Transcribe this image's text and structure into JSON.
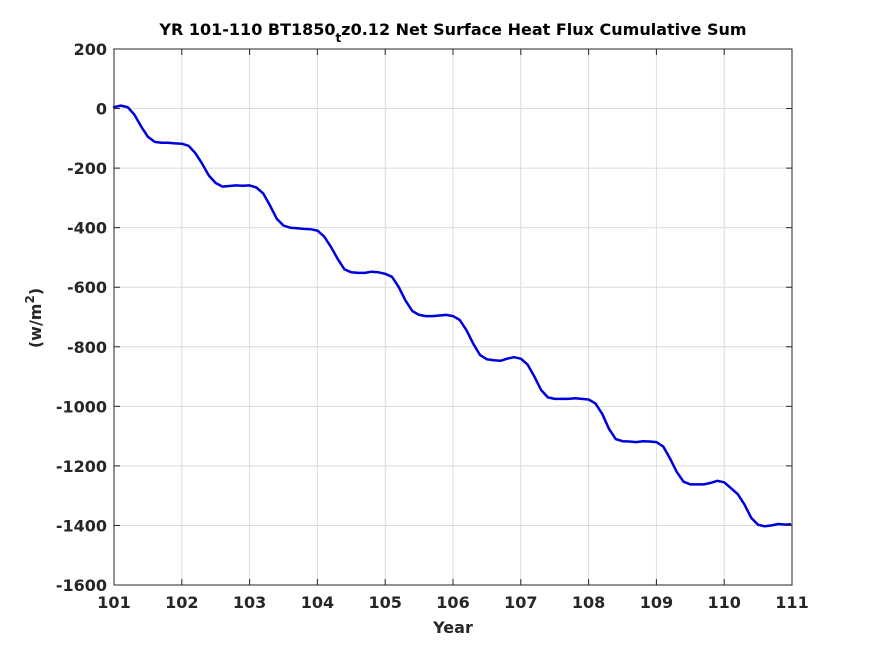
{
  "chart_data": {
    "type": "line",
    "title": {
      "prefix": "YR 101-110 BT1850",
      "subscript": "t",
      "suffix": "z0.12 Net Surface Heat Flux  Cumulative Sum"
    },
    "xlabel": "Year",
    "ylabel": {
      "base": "(w/m",
      "superscript": "2",
      "close": ")"
    },
    "xlim": [
      101,
      111
    ],
    "ylim": [
      -1600,
      200
    ],
    "xticks": [
      101,
      102,
      103,
      104,
      105,
      106,
      107,
      108,
      109,
      110,
      111
    ],
    "xtick_labels": [
      "101",
      "102",
      "103",
      "104",
      "105",
      "106",
      "107",
      "108",
      "109",
      "110",
      "111"
    ],
    "yticks": [
      -1600,
      -1400,
      -1200,
      -1000,
      -800,
      -600,
      -400,
      -200,
      0,
      200
    ],
    "ytick_labels": [
      "-1600",
      "-1400",
      "-1200",
      "-1000",
      "-800",
      "-600",
      "-400",
      "-200",
      "0",
      "200"
    ],
    "grid": true,
    "series": [
      {
        "color": "#0000dd",
        "x": [
          101.0,
          101.1,
          101.2,
          101.3,
          101.4,
          101.5,
          101.6,
          101.7,
          101.8,
          101.9,
          102.0,
          102.1,
          102.2,
          102.3,
          102.4,
          102.5,
          102.6,
          102.7,
          102.8,
          102.9,
          103.0,
          103.1,
          103.2,
          103.3,
          103.4,
          103.5,
          103.6,
          103.7,
          103.8,
          103.9,
          104.0,
          104.1,
          104.2,
          104.3,
          104.4,
          104.5,
          104.6,
          104.7,
          104.8,
          104.9,
          105.0,
          105.1,
          105.2,
          105.3,
          105.4,
          105.5,
          105.6,
          105.7,
          105.8,
          105.9,
          106.0,
          106.1,
          106.2,
          106.3,
          106.4,
          106.5,
          106.6,
          106.7,
          106.8,
          106.9,
          107.0,
          107.1,
          107.2,
          107.3,
          107.4,
          107.5,
          107.6,
          107.7,
          107.8,
          107.9,
          108.0,
          108.1,
          108.2,
          108.3,
          108.4,
          108.5,
          108.6,
          108.7,
          108.8,
          108.9,
          109.0,
          109.1,
          109.2,
          109.3,
          109.4,
          109.5,
          109.6,
          109.7,
          109.8,
          109.9,
          110.0,
          110.1,
          110.2,
          110.3,
          110.4,
          110.5,
          110.6,
          110.7,
          110.8,
          110.9,
          110.97
        ],
        "values": [
          5,
          10,
          5,
          -20,
          -60,
          -95,
          -112,
          -115,
          -115,
          -117,
          -118,
          -125,
          -150,
          -185,
          -225,
          -250,
          -262,
          -260,
          -258,
          -259,
          -258,
          -265,
          -285,
          -325,
          -370,
          -393,
          -400,
          -402,
          -404,
          -405,
          -410,
          -430,
          -465,
          -505,
          -540,
          -550,
          -552,
          -552,
          -548,
          -550,
          -555,
          -565,
          -600,
          -645,
          -680,
          -693,
          -697,
          -697,
          -695,
          -693,
          -697,
          -710,
          -745,
          -790,
          -828,
          -842,
          -845,
          -847,
          -840,
          -835,
          -840,
          -860,
          -900,
          -945,
          -970,
          -975,
          -975,
          -975,
          -973,
          -975,
          -977,
          -990,
          -1025,
          -1075,
          -1110,
          -1117,
          -1118,
          -1120,
          -1117,
          -1118,
          -1120,
          -1135,
          -1175,
          -1220,
          -1253,
          -1262,
          -1262,
          -1262,
          -1257,
          -1250,
          -1255,
          -1275,
          -1295,
          -1330,
          -1375,
          -1398,
          -1403,
          -1400,
          -1395,
          -1397,
          -1396
        ]
      }
    ]
  }
}
